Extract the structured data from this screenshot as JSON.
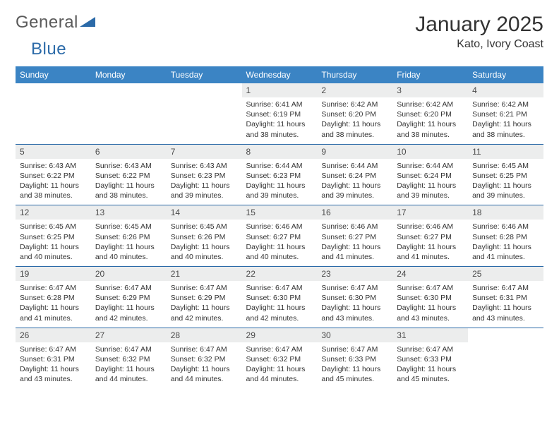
{
  "logo": {
    "text1": "General",
    "text2": "Blue"
  },
  "title": "January 2025",
  "location": "Kato, Ivory Coast",
  "colors": {
    "header_bg": "#3b84c4",
    "header_text": "#ffffff",
    "daynum_bg": "#eceded",
    "row_border": "#2b6aa8",
    "logo_gray": "#5a5a5a",
    "logo_blue": "#2b6aa8"
  },
  "weekdays": [
    "Sunday",
    "Monday",
    "Tuesday",
    "Wednesday",
    "Thursday",
    "Friday",
    "Saturday"
  ],
  "weeks": [
    [
      null,
      null,
      null,
      {
        "n": "1",
        "sunrise": "6:41 AM",
        "sunset": "6:19 PM",
        "dh": "11",
        "dm": "38"
      },
      {
        "n": "2",
        "sunrise": "6:42 AM",
        "sunset": "6:20 PM",
        "dh": "11",
        "dm": "38"
      },
      {
        "n": "3",
        "sunrise": "6:42 AM",
        "sunset": "6:20 PM",
        "dh": "11",
        "dm": "38"
      },
      {
        "n": "4",
        "sunrise": "6:42 AM",
        "sunset": "6:21 PM",
        "dh": "11",
        "dm": "38"
      }
    ],
    [
      {
        "n": "5",
        "sunrise": "6:43 AM",
        "sunset": "6:22 PM",
        "dh": "11",
        "dm": "38"
      },
      {
        "n": "6",
        "sunrise": "6:43 AM",
        "sunset": "6:22 PM",
        "dh": "11",
        "dm": "38"
      },
      {
        "n": "7",
        "sunrise": "6:43 AM",
        "sunset": "6:23 PM",
        "dh": "11",
        "dm": "39"
      },
      {
        "n": "8",
        "sunrise": "6:44 AM",
        "sunset": "6:23 PM",
        "dh": "11",
        "dm": "39"
      },
      {
        "n": "9",
        "sunrise": "6:44 AM",
        "sunset": "6:24 PM",
        "dh": "11",
        "dm": "39"
      },
      {
        "n": "10",
        "sunrise": "6:44 AM",
        "sunset": "6:24 PM",
        "dh": "11",
        "dm": "39"
      },
      {
        "n": "11",
        "sunrise": "6:45 AM",
        "sunset": "6:25 PM",
        "dh": "11",
        "dm": "39"
      }
    ],
    [
      {
        "n": "12",
        "sunrise": "6:45 AM",
        "sunset": "6:25 PM",
        "dh": "11",
        "dm": "40"
      },
      {
        "n": "13",
        "sunrise": "6:45 AM",
        "sunset": "6:26 PM",
        "dh": "11",
        "dm": "40"
      },
      {
        "n": "14",
        "sunrise": "6:45 AM",
        "sunset": "6:26 PM",
        "dh": "11",
        "dm": "40"
      },
      {
        "n": "15",
        "sunrise": "6:46 AM",
        "sunset": "6:27 PM",
        "dh": "11",
        "dm": "40"
      },
      {
        "n": "16",
        "sunrise": "6:46 AM",
        "sunset": "6:27 PM",
        "dh": "11",
        "dm": "41"
      },
      {
        "n": "17",
        "sunrise": "6:46 AM",
        "sunset": "6:27 PM",
        "dh": "11",
        "dm": "41"
      },
      {
        "n": "18",
        "sunrise": "6:46 AM",
        "sunset": "6:28 PM",
        "dh": "11",
        "dm": "41"
      }
    ],
    [
      {
        "n": "19",
        "sunrise": "6:47 AM",
        "sunset": "6:28 PM",
        "dh": "11",
        "dm": "41"
      },
      {
        "n": "20",
        "sunrise": "6:47 AM",
        "sunset": "6:29 PM",
        "dh": "11",
        "dm": "42"
      },
      {
        "n": "21",
        "sunrise": "6:47 AM",
        "sunset": "6:29 PM",
        "dh": "11",
        "dm": "42"
      },
      {
        "n": "22",
        "sunrise": "6:47 AM",
        "sunset": "6:30 PM",
        "dh": "11",
        "dm": "42"
      },
      {
        "n": "23",
        "sunrise": "6:47 AM",
        "sunset": "6:30 PM",
        "dh": "11",
        "dm": "43"
      },
      {
        "n": "24",
        "sunrise": "6:47 AM",
        "sunset": "6:30 PM",
        "dh": "11",
        "dm": "43"
      },
      {
        "n": "25",
        "sunrise": "6:47 AM",
        "sunset": "6:31 PM",
        "dh": "11",
        "dm": "43"
      }
    ],
    [
      {
        "n": "26",
        "sunrise": "6:47 AM",
        "sunset": "6:31 PM",
        "dh": "11",
        "dm": "43"
      },
      {
        "n": "27",
        "sunrise": "6:47 AM",
        "sunset": "6:32 PM",
        "dh": "11",
        "dm": "44"
      },
      {
        "n": "28",
        "sunrise": "6:47 AM",
        "sunset": "6:32 PM",
        "dh": "11",
        "dm": "44"
      },
      {
        "n": "29",
        "sunrise": "6:47 AM",
        "sunset": "6:32 PM",
        "dh": "11",
        "dm": "44"
      },
      {
        "n": "30",
        "sunrise": "6:47 AM",
        "sunset": "6:33 PM",
        "dh": "11",
        "dm": "45"
      },
      {
        "n": "31",
        "sunrise": "6:47 AM",
        "sunset": "6:33 PM",
        "dh": "11",
        "dm": "45"
      },
      null
    ]
  ],
  "labels": {
    "sunrise": "Sunrise:",
    "sunset": "Sunset:",
    "daylight_prefix": "Daylight:",
    "hours_word": "hours",
    "and_word": "and",
    "minutes_word": "minutes."
  }
}
